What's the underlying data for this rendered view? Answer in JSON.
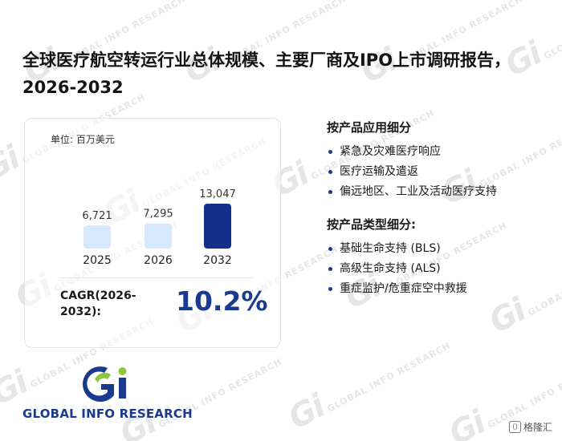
{
  "title": "全球医疗航空转运行业总体规模、主要厂商及IPO上市调研报告，2026-2032",
  "unit_label": "单位: 百万美元",
  "chart_data": {
    "type": "bar",
    "categories": [
      "2025",
      "2026",
      "2032"
    ],
    "values": [
      6721,
      7295,
      13047
    ],
    "value_labels": [
      "6,721",
      "7,295",
      "13,047"
    ],
    "colors": [
      "#d6e8fb",
      "#d6e8fb",
      "#13318a"
    ],
    "ylim": [
      0,
      13047
    ],
    "unit": "百万美元",
    "grid": false
  },
  "cagr": {
    "label": "CAGR(2026-2032):",
    "value": "10.2%"
  },
  "segments": [
    {
      "heading": "按产品应用细分",
      "items": [
        "紧急及灾难医疗响应",
        "医疗运输及遣返",
        "偏远地区、工业及活动医疗支持"
      ]
    },
    {
      "heading": "按产品类型细分:",
      "items": [
        "基础生命支持 (BLS)",
        "高级生命支持 (ALS)",
        "重症监护/危重症空中救援"
      ]
    }
  ],
  "logo": {
    "text": "GLOBAL INFO RESEARCH",
    "mark": "Gi",
    "mark_color_primary": "#1a3a8f",
    "mark_color_accent": "#8cc63f"
  },
  "source": {
    "text": "格隆汇",
    "icon": "gelonghui-icon"
  }
}
